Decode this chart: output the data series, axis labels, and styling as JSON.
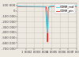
{
  "bg_color": "#ede8e0",
  "grid_color": "#d0ccc4",
  "line1_color": "#55ddee",
  "line2_color": "#ee3333",
  "line1_label": "CONR_rod",
  "line2_label": "CONR_pin",
  "ylim": [
    -700000,
    150000
  ],
  "xlim": [
    0,
    7000
  ],
  "yticks": [
    100000,
    0,
    -100000,
    -200000,
    -300000,
    -400000,
    -500000,
    -600000,
    -700000
  ],
  "xticks": [
    1000,
    2000,
    3000,
    4000,
    5000,
    6000,
    7000
  ]
}
